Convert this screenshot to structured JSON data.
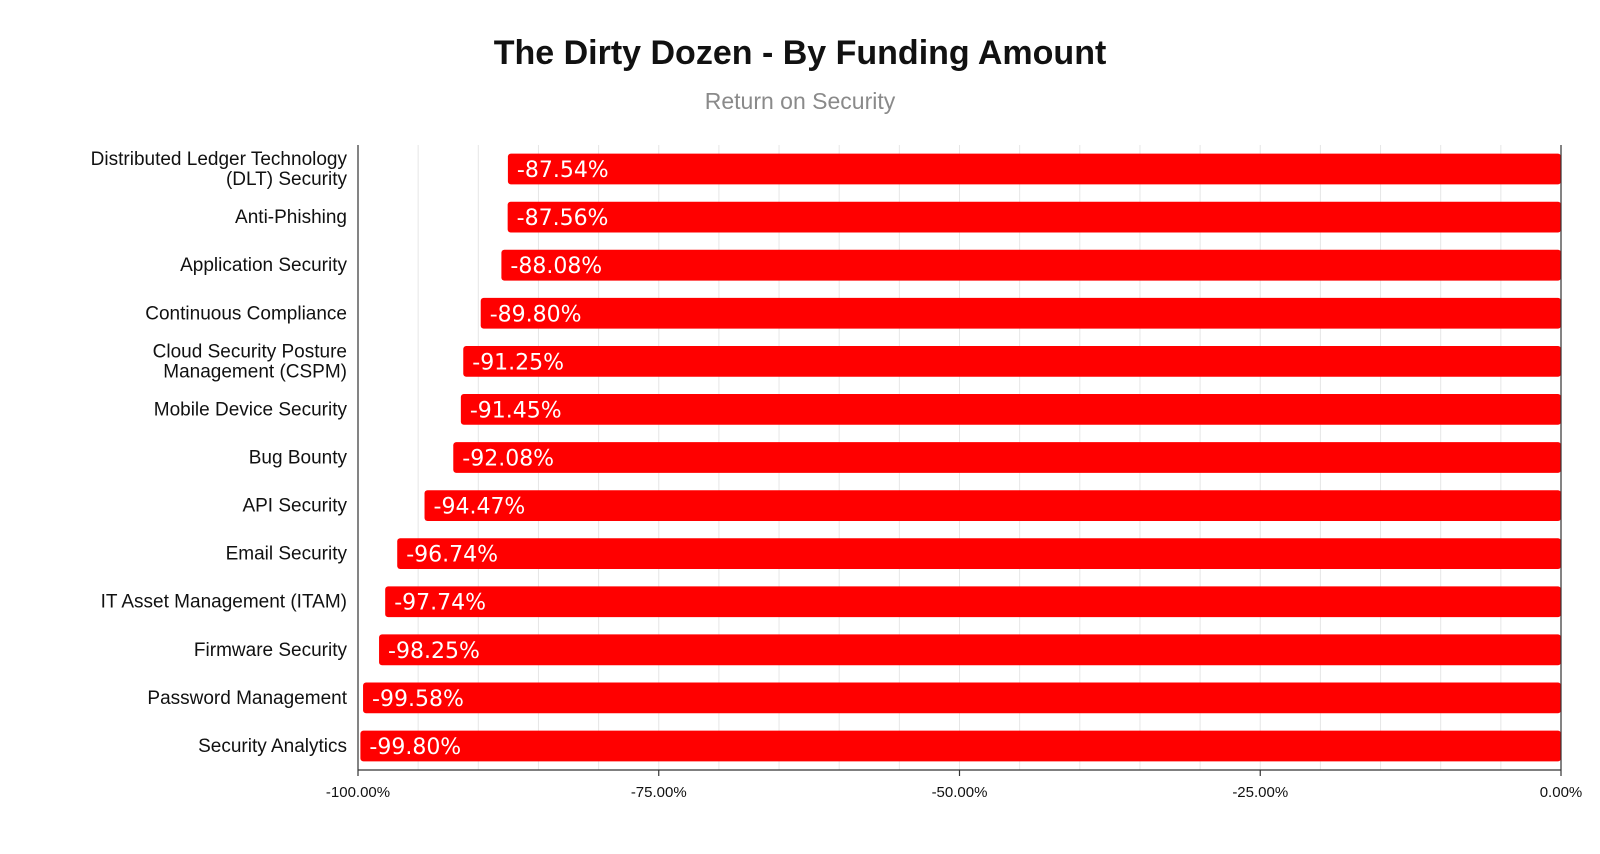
{
  "chart_data": {
    "type": "bar",
    "orientation": "horizontal",
    "title": "The Dirty Dozen - By Funding Amount",
    "subtitle": "Return on Security",
    "categories": [
      [
        "Distributed Ledger Technology",
        "(DLT) Security"
      ],
      [
        "Anti-Phishing"
      ],
      [
        "Application Security"
      ],
      [
        "Continuous Compliance"
      ],
      [
        "Cloud Security Posture",
        "Management (CSPM)"
      ],
      [
        "Mobile Device Security"
      ],
      [
        "Bug Bounty"
      ],
      [
        "API Security"
      ],
      [
        "Email Security"
      ],
      [
        "IT Asset Management (ITAM)"
      ],
      [
        "Firmware Security"
      ],
      [
        "Password Management"
      ],
      [
        "Security Analytics"
      ]
    ],
    "values": [
      -87.54,
      -87.56,
      -88.08,
      -89.8,
      -91.25,
      -91.45,
      -92.08,
      -94.47,
      -96.74,
      -97.74,
      -98.25,
      -99.58,
      -99.8
    ],
    "data_labels": [
      "-87.54%",
      "-87.56%",
      "-88.08%",
      "-89.80%",
      "-91.25%",
      "-91.45%",
      "-92.08%",
      "-94.47%",
      "-96.74%",
      "-97.74%",
      "-98.25%",
      "-99.58%",
      "-99.80%"
    ],
    "xlim": [
      -100,
      0
    ],
    "x_ticks": [
      -100,
      -75,
      -50,
      -25,
      0
    ],
    "x_tick_labels": [
      "-100.00%",
      "-75.00%",
      "-50.00%",
      "-25.00%",
      "0.00%"
    ],
    "xlabel": "",
    "ylabel": "",
    "grid": true,
    "legend": "none",
    "bar_color": "#ff0000",
    "grid_color": "#e6e6e6",
    "axis_color": "#333333"
  }
}
